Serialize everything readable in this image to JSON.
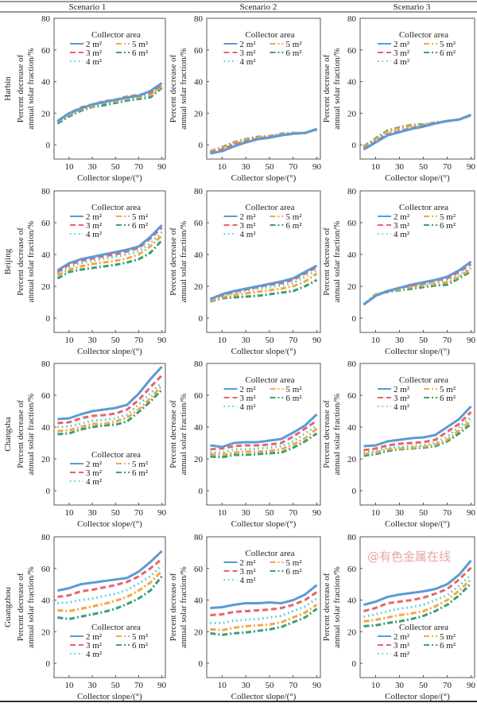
{
  "chart_data": {
    "type": "line",
    "layout": "4 rows x 3 columns of small multiples",
    "column_headers": [
      "Scenario 1",
      "Scenario 2",
      "Scenario 3"
    ],
    "row_labels": [
      "Harbin",
      "Beijing",
      "Changsha",
      "Guangzhou"
    ],
    "xlabel": "Collector slope/(°)",
    "ylabel": [
      "Percent decrease of",
      "annual solar fraction/%"
    ],
    "x": [
      0,
      10,
      20,
      30,
      40,
      50,
      60,
      70,
      80,
      90
    ],
    "xticks": [
      10,
      30,
      50,
      70,
      90
    ],
    "yticks": [
      0,
      20,
      40,
      60,
      80
    ],
    "xlim": [
      -3,
      93
    ],
    "ylim": [
      -9,
      80
    ],
    "grid": false,
    "legend": {
      "title": "Collector area",
      "entries": [
        {
          "key": "s2",
          "label": "2 m²",
          "color": "#5b9bd5",
          "style": "solid"
        },
        {
          "key": "s3",
          "label": "3 m²",
          "color": "#e8646a",
          "style": "dashed"
        },
        {
          "key": "s4",
          "label": "4 m²",
          "color": "#4dc7c9",
          "style": "dotted"
        },
        {
          "key": "s5",
          "label": "5 m²",
          "color": "#f5a742",
          "style": "dash-dot"
        },
        {
          "key": "s6",
          "label": "6 m²",
          "color": "#3a9f78",
          "style": "dash-dot"
        }
      ]
    },
    "panels": [
      {
        "row": "Harbin",
        "scenario": "Scenario 1",
        "legend_placement": "top",
        "series": {
          "s2": [
            15,
            20,
            23,
            25.5,
            27,
            28.5,
            30,
            31,
            34,
            39
          ],
          "s3": [
            15,
            20,
            23.5,
            25.5,
            27.5,
            28.5,
            30.5,
            31.5,
            33,
            38
          ],
          "s4": [
            14.5,
            19,
            23,
            25,
            26.5,
            28,
            29.5,
            30.5,
            32,
            38
          ],
          "s5": [
            14.5,
            19,
            22.5,
            24.5,
            26.5,
            27.5,
            29,
            30,
            31.5,
            37
          ],
          "s6": [
            13.5,
            18,
            21.5,
            24,
            25,
            26.5,
            28,
            29,
            30,
            36
          ]
        }
      },
      {
        "row": "Harbin",
        "scenario": "Scenario 2",
        "legend_placement": "top",
        "series": {
          "s2": [
            -5.5,
            -4,
            -1,
            1.5,
            3.5,
            4.5,
            6,
            7,
            7.5,
            10
          ],
          "s3": [
            -5,
            -3,
            0,
            2,
            4,
            5,
            6,
            7,
            7.5,
            10
          ],
          "s4": [
            -4.5,
            -2.5,
            0.5,
            2.5,
            4,
            5,
            6.5,
            7.5,
            7.5,
            10
          ],
          "s5": [
            -4,
            -2,
            1,
            3,
            4.5,
            5.5,
            6.5,
            7.5,
            7.5,
            9.5
          ],
          "s6": [
            -4,
            -1.5,
            1.5,
            3.5,
            5,
            5.5,
            7,
            7.5,
            7.5,
            9.5
          ]
        }
      },
      {
        "row": "Harbin",
        "scenario": "Scenario 3",
        "legend_placement": "top",
        "series": {
          "s2": [
            -3,
            1.5,
            6,
            8,
            10,
            11.5,
            13.5,
            15,
            16,
            19
          ],
          "s3": [
            -2.5,
            2,
            6.5,
            8.5,
            10.5,
            12,
            13.5,
            15,
            16,
            19
          ],
          "s4": [
            -2,
            3,
            7.5,
            9.5,
            11,
            12.5,
            14,
            15,
            16,
            19
          ],
          "s5": [
            -1.5,
            3.5,
            8.5,
            10.5,
            12,
            12.5,
            14,
            15,
            16,
            18.5
          ],
          "s6": [
            -1,
            4,
            9,
            11,
            12.5,
            13,
            14,
            15,
            16,
            18.5
          ]
        }
      },
      {
        "row": "Beijing",
        "scenario": "Scenario 1",
        "legend_placement": "top",
        "series": {
          "s2": [
            30,
            34.5,
            37,
            38.5,
            40,
            41.5,
            43,
            45,
            51,
            58.5
          ],
          "s3": [
            29,
            33.5,
            36,
            37.5,
            39,
            40,
            42,
            44,
            50,
            57
          ],
          "s4": [
            28,
            32,
            34.5,
            36,
            37.5,
            38.5,
            40,
            42,
            47,
            54
          ],
          "s5": [
            27,
            30.5,
            32.5,
            34,
            35,
            36,
            37.5,
            40,
            45,
            52
          ],
          "s6": [
            25,
            29,
            30.5,
            31.5,
            32.5,
            33.5,
            35,
            37,
            41,
            49
          ]
        }
      },
      {
        "row": "Beijing",
        "scenario": "Scenario 2",
        "legend_placement": "top",
        "series": {
          "s2": [
            12,
            15,
            17,
            18.5,
            20,
            21.5,
            23,
            25,
            29,
            33
          ],
          "s3": [
            12,
            14.5,
            16.5,
            18,
            19.5,
            21,
            22,
            24,
            28,
            32
          ],
          "s4": [
            11.5,
            14,
            16,
            17,
            18.5,
            19.5,
            20.5,
            22,
            26,
            30
          ],
          "s5": [
            11,
            13,
            14.5,
            15.5,
            16.5,
            17.5,
            18.5,
            20,
            23,
            28
          ],
          "s6": [
            10.5,
            12.5,
            13,
            13.5,
            14,
            15,
            16,
            17,
            20,
            24
          ]
        }
      },
      {
        "row": "Beijing",
        "scenario": "Scenario 3",
        "legend_placement": "top",
        "series": {
          "s2": [
            8.5,
            14,
            17,
            19,
            21,
            22.5,
            24,
            26,
            30,
            35.5
          ],
          "s3": [
            8.5,
            14,
            17,
            19,
            20.5,
            22,
            23.5,
            25,
            29,
            34
          ],
          "s4": [
            8.5,
            14.5,
            17,
            18.5,
            20,
            21,
            22.5,
            24,
            27,
            32
          ],
          "s5": [
            8.5,
            15,
            17,
            18,
            19.5,
            20.5,
            21.5,
            22.5,
            26,
            31
          ],
          "s6": [
            8.5,
            15,
            16.5,
            17.5,
            18.5,
            19.5,
            20.5,
            21,
            25,
            29.5
          ]
        }
      },
      {
        "row": "Changsha",
        "scenario": "Scenario 1",
        "legend_placement": "bottom",
        "series": {
          "s2": [
            45,
            45.5,
            48,
            50,
            51,
            52,
            54,
            61,
            70,
            78
          ],
          "s3": [
            42.5,
            43,
            45.5,
            47,
            47.5,
            48.5,
            51,
            57,
            65,
            72.5
          ],
          "s4": [
            40,
            40.5,
            42,
            44,
            44.5,
            45.5,
            48,
            54,
            61,
            68
          ],
          "s5": [
            37.5,
            38,
            40,
            42,
            42,
            43.5,
            46,
            51,
            58,
            66
          ],
          "s6": [
            35.5,
            36,
            38.5,
            40,
            41,
            41.5,
            43.5,
            49.5,
            56,
            63.5
          ]
        }
      },
      {
        "row": "Changsha",
        "scenario": "Scenario 2",
        "legend_placement": "top",
        "series": {
          "s2": [
            28.5,
            27.5,
            30,
            30.5,
            30.5,
            31.5,
            32.5,
            36.5,
            41,
            48
          ],
          "s3": [
            26,
            26.5,
            28,
            28.5,
            28.5,
            29,
            30,
            34,
            39,
            44
          ],
          "s4": [
            24,
            24,
            26,
            26,
            26.5,
            27,
            28,
            31,
            36,
            41
          ],
          "s5": [
            23,
            22.5,
            24,
            24.5,
            24.5,
            25,
            26,
            29,
            33,
            39
          ],
          "s6": [
            21.5,
            21,
            22.5,
            22.5,
            23,
            23.5,
            24,
            27,
            31,
            36
          ]
        }
      },
      {
        "row": "Changsha",
        "scenario": "Scenario 3",
        "legend_placement": "top",
        "series": {
          "s2": [
            28,
            28.5,
            31,
            32,
            33,
            33.5,
            35,
            40,
            45,
            53
          ],
          "s3": [
            25.5,
            26.5,
            28.5,
            29.5,
            30,
            30.5,
            32,
            37,
            42,
            49.5
          ],
          "s4": [
            24,
            25,
            27,
            27.5,
            28,
            28.5,
            30,
            34,
            40,
            46
          ],
          "s5": [
            23,
            24,
            26,
            26.5,
            27,
            27.5,
            29,
            32,
            38,
            44
          ],
          "s6": [
            22,
            23,
            25,
            26,
            26.5,
            27,
            28,
            31,
            36,
            42
          ]
        }
      },
      {
        "row": "Guangzhou",
        "scenario": "Scenario 1",
        "legend_placement": "bottom",
        "series": {
          "s2": [
            46,
            47.5,
            50,
            51,
            52,
            53,
            54,
            58,
            64,
            71
          ],
          "s3": [
            42,
            43,
            45.5,
            46.5,
            48,
            49.5,
            51.5,
            55,
            60,
            66
          ],
          "s4": [
            38,
            38.5,
            40,
            41,
            42.5,
            44,
            46.5,
            50.5,
            55,
            62
          ],
          "s5": [
            33.5,
            33,
            34.5,
            36,
            37.5,
            39.5,
            42,
            46,
            51,
            58.5
          ],
          "s6": [
            29,
            28,
            29.5,
            31,
            32.5,
            34.5,
            37.5,
            41,
            46,
            55
          ]
        }
      },
      {
        "row": "Guangzhou",
        "scenario": "Scenario 2",
        "legend_placement": "top",
        "series": {
          "s2": [
            35,
            35.5,
            37,
            38,
            38,
            38.5,
            38,
            40,
            43.5,
            49.5
          ],
          "s3": [
            30.5,
            31,
            32.5,
            33,
            33.5,
            34,
            35,
            37,
            40,
            45
          ],
          "s4": [
            25.5,
            25.5,
            27,
            27.5,
            28,
            29,
            30,
            33,
            36,
            41
          ],
          "s5": [
            21.5,
            21,
            22.5,
            23.5,
            24,
            24.5,
            26,
            29,
            32,
            37
          ],
          "s6": [
            19,
            18,
            19,
            19.5,
            20.5,
            21.5,
            23,
            26,
            29,
            34.5
          ]
        }
      },
      {
        "row": "Guangzhou",
        "scenario": "Scenario 3",
        "legend_placement": "bottom",
        "series": {
          "s2": [
            37,
            39,
            42,
            43.5,
            44.5,
            45.5,
            47,
            50,
            56,
            65
          ],
          "s3": [
            33,
            35,
            38,
            39,
            40,
            41.5,
            44,
            47,
            53,
            60.5
          ],
          "s4": [
            29.5,
            31,
            33,
            34.5,
            35.5,
            37,
            40,
            43,
            49,
            56
          ],
          "s5": [
            26.5,
            27.5,
            29,
            30.5,
            31.5,
            33,
            36,
            40,
            46,
            53
          ],
          "s6": [
            23.5,
            24,
            25.5,
            26.5,
            28,
            30,
            33,
            37,
            43,
            50.5
          ]
        }
      }
    ],
    "watermark": "@有色金属在线"
  }
}
